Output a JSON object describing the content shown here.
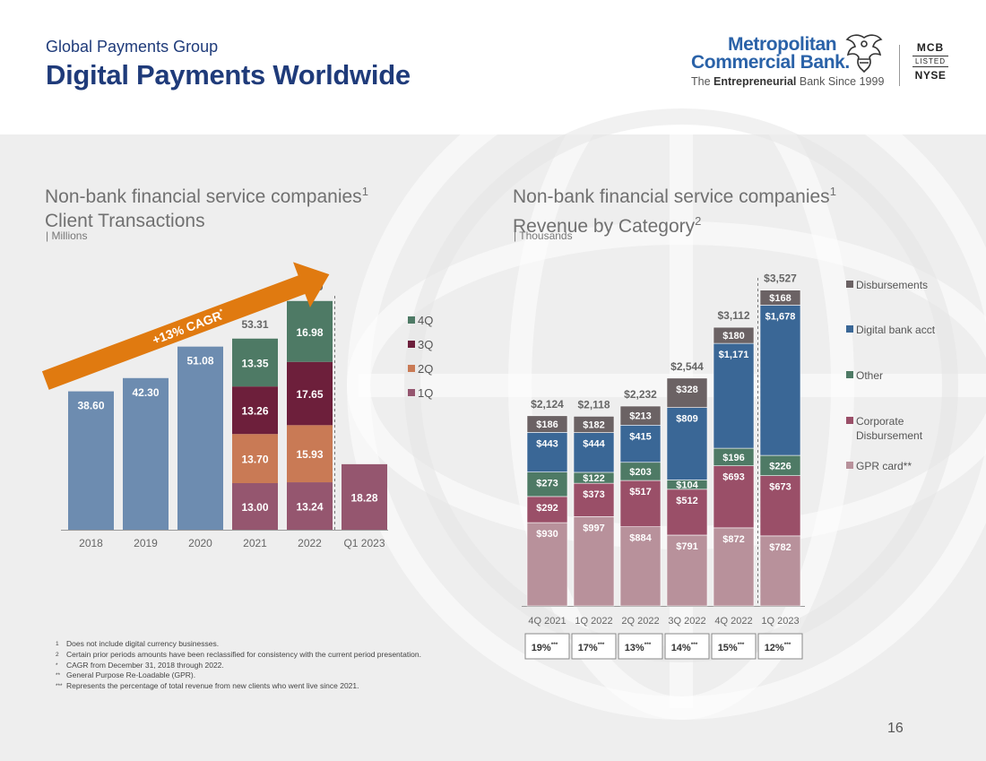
{
  "header": {
    "eyebrow": "Global Payments Group",
    "title": "Digital Payments Worldwide"
  },
  "logo": {
    "line1": "Metropolitan",
    "line2": "Commercial Bank.",
    "tag_prefix": "The ",
    "tag_bold": "Entrepreneurial",
    "tag_suffix": " Bank Since 1999",
    "badge_top": "MCB",
    "badge_mid": "LISTED",
    "badge_bottom": "NYSE"
  },
  "left_section": {
    "title_line1": "Non-bank financial service companies",
    "title_sup": "1",
    "title_line2": "Client Transactions",
    "unit": "| Millions"
  },
  "right_section": {
    "title_line1": "Non-bank financial service companies",
    "title_sup": "1",
    "title_line2": "Revenue by Category",
    "title_sup2": "2",
    "unit": "| Thousands"
  },
  "chart_data": [
    {
      "type": "bar",
      "stacked": true,
      "categories": [
        "2018",
        "2019",
        "2020",
        "2021",
        "2022",
        "Q1 2023"
      ],
      "single_values": [
        38.6,
        42.3,
        51.08,
        null,
        null,
        18.28
      ],
      "series": [
        {
          "name": "1Q",
          "values": [
            null,
            null,
            null,
            13.0,
            13.24,
            null
          ],
          "color": "#95566f"
        },
        {
          "name": "2Q",
          "values": [
            null,
            null,
            null,
            13.7,
            15.93,
            null
          ],
          "color": "#c97a55"
        },
        {
          "name": "3Q",
          "values": [
            null,
            null,
            null,
            13.26,
            17.65,
            null
          ],
          "color": "#6d1f3b"
        },
        {
          "name": "4Q",
          "values": [
            null,
            null,
            null,
            13.35,
            16.98,
            null
          ],
          "color": "#4e7a65"
        }
      ],
      "totals": [
        "",
        "",
        "",
        "53.31",
        "63.80",
        ""
      ],
      "legend_order": [
        "4Q",
        "3Q",
        "2Q",
        "1Q"
      ],
      "annual_color": "#6d8cb0",
      "q1_color": "#95566f",
      "annotation": "+13% CAGR",
      "annotation_sup": "*",
      "arrow_color": "#e07a10",
      "ylim": [
        0,
        70
      ]
    },
    {
      "type": "bar",
      "stacked": true,
      "categories": [
        "4Q 2021",
        "1Q 2022",
        "2Q 2022",
        "3Q 2022",
        "4Q 2022",
        "1Q 2023"
      ],
      "series": [
        {
          "name": "GPR card**",
          "values": [
            930,
            997,
            884,
            791,
            872,
            782
          ],
          "labels": [
            "$930",
            "$997",
            "$884",
            "$791",
            "$872",
            "$782"
          ],
          "color": "#b8919b"
        },
        {
          "name": "Corporate Disbursement",
          "values": [
            292,
            373,
            517,
            512,
            693,
            673
          ],
          "labels": [
            "$292",
            "$373",
            "$517",
            "$512",
            "$693",
            "$673"
          ],
          "color": "#9a4f68"
        },
        {
          "name": "Other",
          "values": [
            273,
            122,
            203,
            104,
            196,
            226
          ],
          "labels": [
            "$273",
            "$122",
            "$203",
            "$104",
            "$196",
            "$226"
          ],
          "color": "#4e7a65"
        },
        {
          "name": "Digital bank acct",
          "values": [
            443,
            444,
            415,
            809,
            1171,
            1678
          ],
          "labels": [
            "$443",
            "$444",
            "$415",
            "$809",
            "$1,171",
            "$1,678"
          ],
          "color": "#3a6796"
        },
        {
          "name": "Disbursements",
          "values": [
            186,
            182,
            213,
            328,
            180,
            168
          ],
          "labels": [
            "$186",
            "$182",
            "$213",
            "$328",
            "$180",
            "$168"
          ],
          "color": "#6b6264"
        }
      ],
      "totals": [
        "$2,124",
        "$2,118",
        "$2,232",
        "$2,544",
        "$3,112",
        "$3,527"
      ],
      "new_client_pct": [
        "19%",
        "17%",
        "13%",
        "14%",
        "15%",
        "12%"
      ],
      "pct_sup": "***",
      "legend_order": [
        "Disbursements",
        "Digital bank acct",
        "Other",
        "Corporate Disbursement",
        "GPR card**"
      ],
      "ylim": [
        0,
        3700
      ]
    }
  ],
  "footnotes": [
    {
      "mark": "1",
      "text": "Does not include digital currency businesses."
    },
    {
      "mark": "2",
      "text": "Certain prior periods amounts have been reclassified for consistency with the current period presentation."
    },
    {
      "mark": "*",
      "text": "CAGR from December 31, 2018 through 2022."
    },
    {
      "mark": "**",
      "text": "General Purpose Re-Loadable  (GPR)."
    },
    {
      "mark": "***",
      "text": "Represents the percentage of total revenue from new clients who went live since 2021."
    }
  ],
  "page_number": "16"
}
